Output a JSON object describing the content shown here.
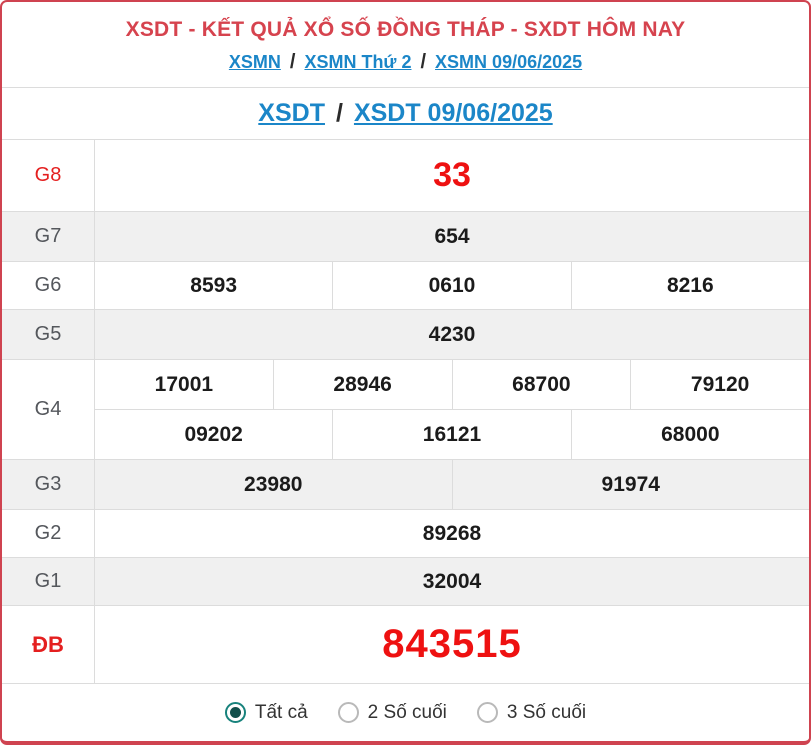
{
  "colors": {
    "accent_red_border": "#cf4350",
    "title_red": "#d6434e",
    "value_red": "#ee1111",
    "prize_label_red": "#e41f1f",
    "link_blue": "#1b86c8",
    "shaded_row_bg": "#f0f0f0",
    "radio_selected_teal": "#17827c"
  },
  "header": {
    "title": "XSDT - KẾT QUẢ XỔ SỐ ĐỒNG THÁP - SXDT HÔM NAY",
    "breadcrumb": {
      "separator": "/",
      "items": [
        {
          "label": "XSMN"
        },
        {
          "label": "XSMN Thứ 2"
        },
        {
          "label": "XSMN 09/06/2025"
        }
      ]
    },
    "subnav": {
      "separator": "/",
      "items": [
        {
          "label": "XSDT"
        },
        {
          "label": "XSDT 09/06/2025"
        }
      ]
    }
  },
  "results": {
    "rows": [
      {
        "prize": "G8",
        "lines": [
          [
            "33"
          ]
        ]
      },
      {
        "prize": "G7",
        "lines": [
          [
            "654"
          ]
        ]
      },
      {
        "prize": "G6",
        "lines": [
          [
            "8593",
            "0610",
            "8216"
          ]
        ]
      },
      {
        "prize": "G5",
        "lines": [
          [
            "4230"
          ]
        ]
      },
      {
        "prize": "G4",
        "lines": [
          [
            "17001",
            "28946",
            "68700",
            "79120"
          ],
          [
            "09202",
            "16121",
            "68000"
          ]
        ]
      },
      {
        "prize": "G3",
        "lines": [
          [
            "23980",
            "91974"
          ]
        ]
      },
      {
        "prize": "G2",
        "lines": [
          [
            "89268"
          ]
        ]
      },
      {
        "prize": "G1",
        "lines": [
          [
            "32004"
          ]
        ]
      },
      {
        "prize": "ĐB",
        "lines": [
          [
            "843515"
          ]
        ]
      }
    ]
  },
  "filter": {
    "options": [
      {
        "label": "Tất cả",
        "selected": true
      },
      {
        "label": "2 Số cuối",
        "selected": false
      },
      {
        "label": "3 Số cuối",
        "selected": false
      }
    ]
  }
}
